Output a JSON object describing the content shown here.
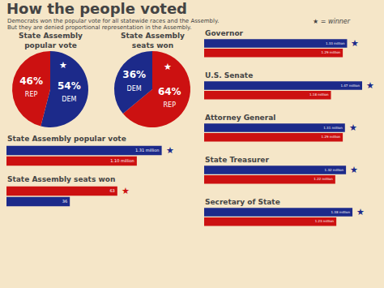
{
  "title": "How the people voted",
  "subtitle": [
    "Democrats won the popular vote for all statewide races and the Assembly.",
    "But they are denied proportional representation in the Assembly."
  ],
  "annotations": [
    {
      "text": "★ = winner"
    }
  ],
  "bg_color": "#f5e6c8",
  "chart_data": [
    {
      "type": "pie",
      "title": [
        "State Assembly",
        "popular vote"
      ],
      "categories": [
        "DEM",
        "REP"
      ],
      "values": [
        54,
        46
      ],
      "value_labels": [
        "54%",
        "46%"
      ],
      "data_labels": true,
      "colors": [
        "#1c2a8a",
        "#cc1111"
      ],
      "annotations": [
        {
          "text": "★",
          "category": "DEM",
          "color": "white"
        }
      ]
    },
    {
      "type": "pie",
      "title": [
        "State Assembly",
        "seats won"
      ],
      "categories": [
        "REP",
        "DEM"
      ],
      "values": [
        64,
        36
      ],
      "value_labels": [
        "64%",
        "36%"
      ],
      "data_labels": true,
      "colors": [
        "#cc1111",
        "#1c2a8a"
      ],
      "annotations": [
        {
          "text": "★",
          "category": "REP",
          "color": "white"
        }
      ]
    },
    {
      "type": "bar",
      "orientation": "horizontal",
      "title": "State Assembly popular vote",
      "categories": [
        null,
        null
      ],
      "values": [
        1.31,
        1.1
      ],
      "value_labels": [
        "1.31 million",
        "1.10 million"
      ],
      "data_labels": true,
      "colors": [
        "#1c2a8a",
        "#cc1111"
      ],
      "xlim": [
        0,
        1.47
      ],
      "grid": false,
      "tick_labels": false,
      "annotations": [
        {
          "text": "★",
          "bar": 0,
          "color": "#1c2a8a"
        }
      ]
    },
    {
      "type": "bar",
      "orientation": "horizontal",
      "title": "State Assembly seats won",
      "categories": [
        null,
        null
      ],
      "values": [
        63,
        36
      ],
      "value_labels": [
        "63",
        "36"
      ],
      "data_labels": true,
      "colors": [
        "#cc1111",
        "#1c2a8a"
      ],
      "xlim": [
        0,
        99
      ],
      "grid": false,
      "tick_labels": false,
      "annotations": [
        {
          "text": "★",
          "bar": 0,
          "color": "#cc1111"
        }
      ]
    },
    {
      "type": "bar",
      "orientation": "horizontal",
      "title": "Governor",
      "categories": [
        null,
        null
      ],
      "values": [
        1.33,
        1.29
      ],
      "value_labels": [
        "1.33 million",
        "1.29 million"
      ],
      "data_labels": true,
      "colors": [
        "#1c2a8a",
        "#cc1111"
      ],
      "xlim": [
        0,
        1.47
      ],
      "grid": false,
      "tick_labels": false,
      "annotations": [
        {
          "text": "★",
          "bar": 0,
          "color": "#1c2a8a"
        }
      ]
    },
    {
      "type": "bar",
      "orientation": "horizontal",
      "title": "U.S. Senate",
      "categories": [
        null,
        null
      ],
      "values": [
        1.47,
        1.18
      ],
      "value_labels": [
        "1.47 million",
        "1.18 million"
      ],
      "data_labels": true,
      "colors": [
        "#1c2a8a",
        "#cc1111"
      ],
      "xlim": [
        0,
        1.47
      ],
      "grid": false,
      "tick_labels": false,
      "annotations": [
        {
          "text": "★",
          "bar": 0,
          "color": "#1c2a8a"
        }
      ]
    },
    {
      "type": "bar",
      "orientation": "horizontal",
      "title": "Attorney General",
      "categories": [
        null,
        null
      ],
      "values": [
        1.31,
        1.29
      ],
      "value_labels": [
        "1.31 million",
        "1.29 million"
      ],
      "data_labels": true,
      "colors": [
        "#1c2a8a",
        "#cc1111"
      ],
      "xlim": [
        0,
        1.47
      ],
      "grid": false,
      "tick_labels": false,
      "annotations": [
        {
          "text": "★",
          "bar": 0,
          "color": "#1c2a8a"
        }
      ]
    },
    {
      "type": "bar",
      "orientation": "horizontal",
      "title": "State Treasurer",
      "categories": [
        null,
        null
      ],
      "values": [
        1.32,
        1.22
      ],
      "value_labels": [
        "1.32 million",
        "1.22 million"
      ],
      "data_labels": true,
      "colors": [
        "#1c2a8a",
        "#cc1111"
      ],
      "xlim": [
        0,
        1.47
      ],
      "grid": false,
      "tick_labels": false,
      "annotations": [
        {
          "text": "★",
          "bar": 0,
          "color": "#1c2a8a"
        }
      ]
    },
    {
      "type": "bar",
      "orientation": "horizontal",
      "title": "Secretary of State",
      "categories": [
        null,
        null
      ],
      "values": [
        1.38,
        1.23
      ],
      "value_labels": [
        "1.38 million",
        "1.23 million"
      ],
      "data_labels": true,
      "colors": [
        "#1c2a8a",
        "#cc1111"
      ],
      "xlim": [
        0,
        1.47
      ],
      "grid": false,
      "tick_labels": false,
      "annotations": [
        {
          "text": "★",
          "bar": 0,
          "color": "#1c2a8a"
        }
      ]
    }
  ]
}
